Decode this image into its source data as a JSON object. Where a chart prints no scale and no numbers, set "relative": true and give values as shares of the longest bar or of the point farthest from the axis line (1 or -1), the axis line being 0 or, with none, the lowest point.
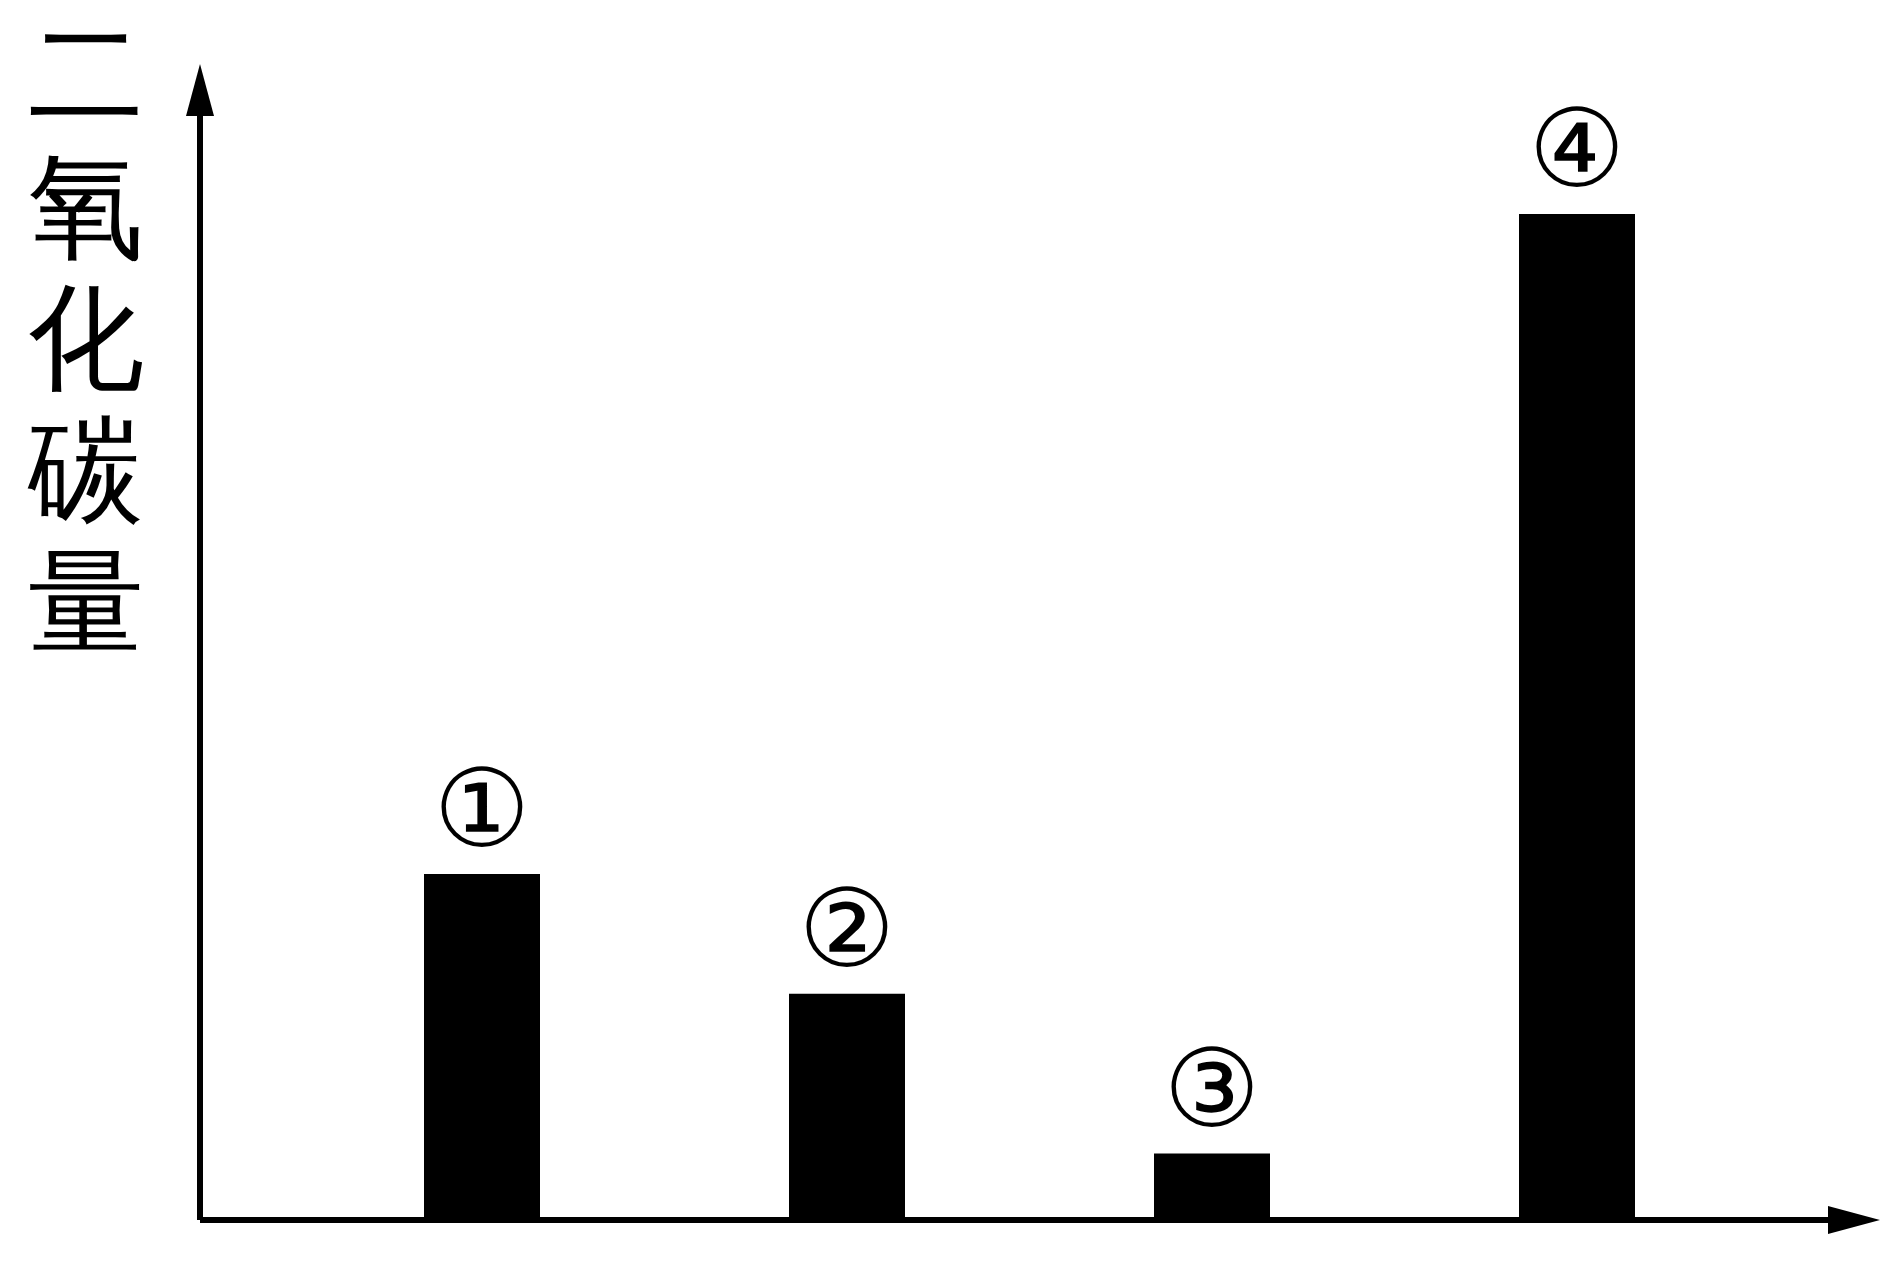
{
  "chart_data": {
    "type": "bar",
    "ylabel": "二氧化碳量",
    "categories": [
      "①",
      "②",
      "③",
      "④"
    ],
    "values": [
      0.344,
      0.225,
      0.066,
      1
    ],
    "color": "#000000",
    "relative": true,
    "grid": false,
    "legend": false
  }
}
